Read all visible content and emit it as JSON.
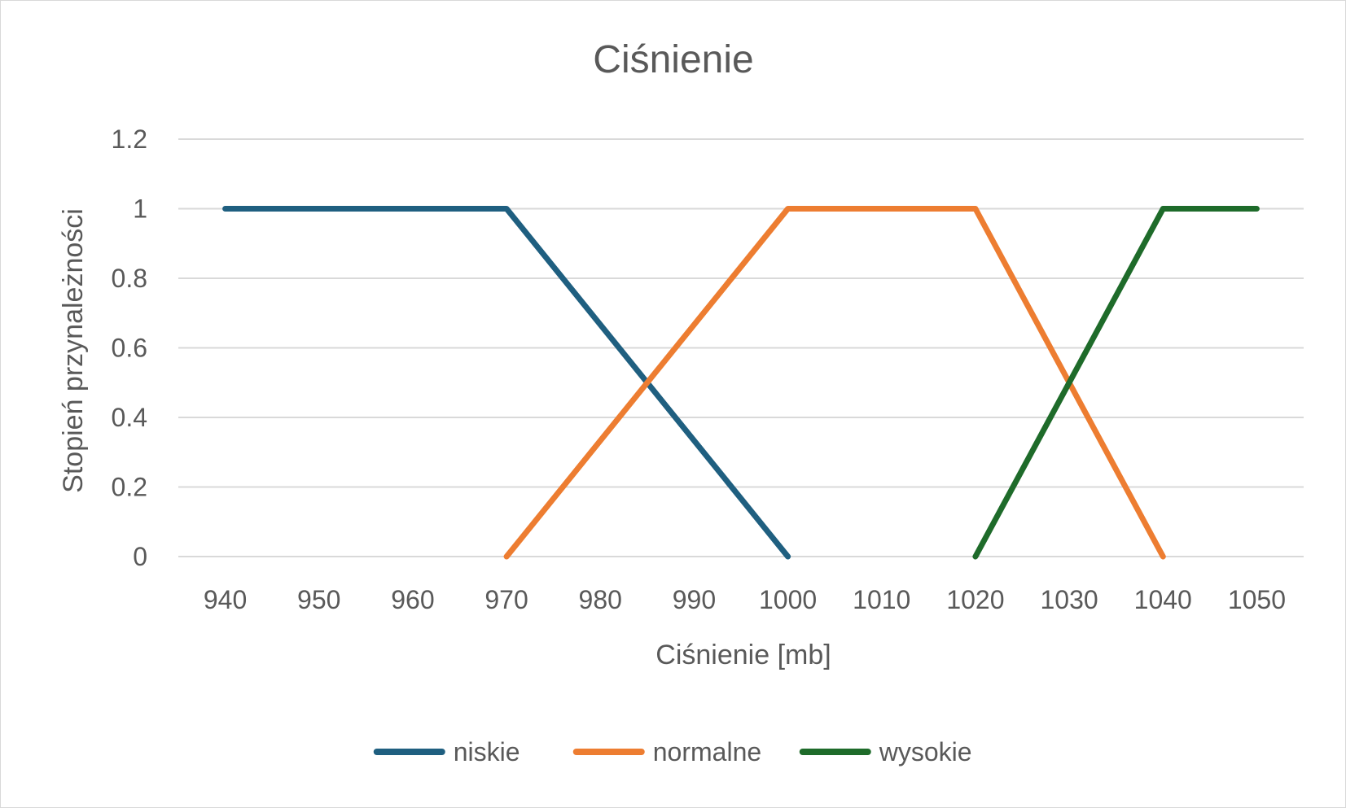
{
  "chart_data": {
    "type": "line",
    "title": "Ciśnienie",
    "xlabel": "Ciśnienie [mb]",
    "ylabel": "Stopień przynależności",
    "x_categories": [
      "940",
      "950",
      "960",
      "970",
      "980",
      "990",
      "1000",
      "1010",
      "1020",
      "1030",
      "1040",
      "1050"
    ],
    "y_ticks": [
      "0",
      "0.2",
      "0.4",
      "0.6",
      "0.8",
      "1",
      "1.2"
    ],
    "ylim": [
      0,
      1.2
    ],
    "grid": true,
    "legend_position": "bottom",
    "series": [
      {
        "name": "niskie",
        "color": "#1f5f80",
        "points": [
          [
            940,
            1
          ],
          [
            970,
            1
          ],
          [
            1000,
            0
          ]
        ]
      },
      {
        "name": "normalne",
        "color": "#ed7d31",
        "points": [
          [
            970,
            0
          ],
          [
            1000,
            1
          ],
          [
            1020,
            1
          ],
          [
            1040,
            0
          ]
        ]
      },
      {
        "name": "wysokie",
        "color": "#1e6b2a",
        "points": [
          [
            1020,
            0
          ],
          [
            1040,
            1
          ],
          [
            1050,
            1
          ]
        ]
      }
    ]
  }
}
